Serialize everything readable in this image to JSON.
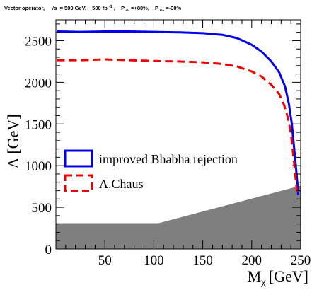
{
  "chart_data": {
    "type": "line",
    "title": "Vector operator,",
    "header": {
      "sqrt_s": "= 500 GeV,",
      "lumi": "500 fb",
      "lumi_exp": "-1",
      "pol_e": "=+80%,",
      "pol_p": "=-30%",
      "sub_e": "e-",
      "sub_p": "e+"
    },
    "xlabel": "M",
    "xlabel_sub": "χ",
    "xlabel_unit": "[GeV]",
    "ylabel": "Λ [GeV]",
    "xlim": [
      0,
      250
    ],
    "ylim": [
      0,
      2750
    ],
    "x_ticks": [
      50,
      100,
      150,
      200,
      250
    ],
    "y_ticks": [
      0,
      500,
      1000,
      1500,
      2000,
      2500
    ],
    "series": [
      {
        "name": "improved Bhabha rejection",
        "color": "#0000ee",
        "dash": "solid",
        "points": [
          [
            1,
            2610
          ],
          [
            25,
            2605
          ],
          [
            50,
            2610
          ],
          [
            75,
            2610
          ],
          [
            100,
            2605
          ],
          [
            125,
            2600
          ],
          [
            150,
            2590
          ],
          [
            170,
            2570
          ],
          [
            185,
            2530
          ],
          [
            200,
            2450
          ],
          [
            210,
            2370
          ],
          [
            220,
            2250
          ],
          [
            228,
            2120
          ],
          [
            234,
            1950
          ],
          [
            238,
            1740
          ],
          [
            241,
            1500
          ],
          [
            243,
            1250
          ],
          [
            245,
            1000
          ],
          [
            246.5,
            800
          ],
          [
            247.5,
            650
          ]
        ]
      },
      {
        "name": "A.Chaus",
        "color": "#ee0000",
        "dash": "dashed",
        "points": [
          [
            1,
            2265
          ],
          [
            25,
            2265
          ],
          [
            50,
            2275
          ],
          [
            75,
            2265
          ],
          [
            100,
            2255
          ],
          [
            125,
            2250
          ],
          [
            150,
            2240
          ],
          [
            170,
            2220
          ],
          [
            185,
            2190
          ],
          [
            200,
            2130
          ],
          [
            210,
            2070
          ],
          [
            220,
            1970
          ],
          [
            228,
            1860
          ],
          [
            233,
            1730
          ],
          [
            237,
            1570
          ],
          [
            240,
            1390
          ],
          [
            242,
            1180
          ],
          [
            244,
            950
          ],
          [
            245.5,
            760
          ],
          [
            246.5,
            650
          ]
        ]
      }
    ],
    "excluded_region": {
      "color": "#7f7f7f",
      "points": [
        [
          0,
          0
        ],
        [
          0,
          310
        ],
        [
          105,
          310
        ],
        [
          250,
          760
        ],
        [
          250,
          0
        ]
      ]
    },
    "legend": "inside-lower-left"
  }
}
